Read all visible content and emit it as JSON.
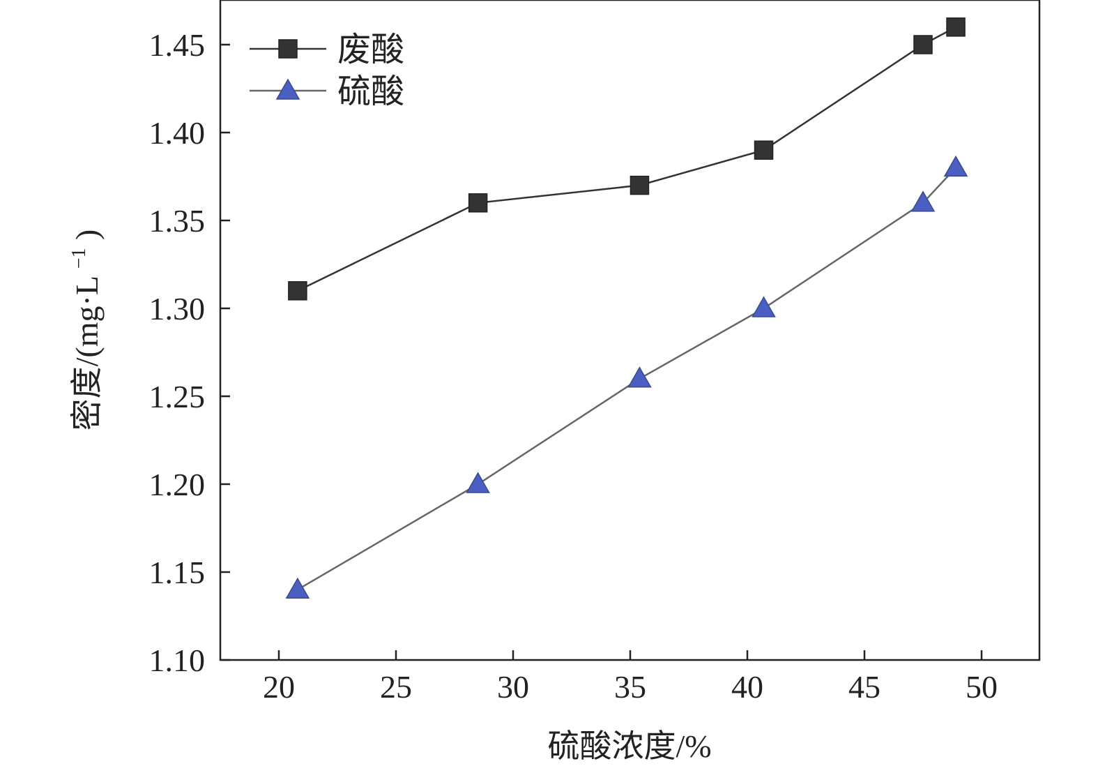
{
  "chart_data": {
    "type": "line",
    "title": "",
    "xlabel": "硫酸浓度/%",
    "ylabel": "密度/(mg·L",
    "ylabel_superscript": "−1",
    "ylabel_close": ")",
    "xlim": [
      17.5,
      52.5
    ],
    "ylim": [
      1.1,
      1.46
    ],
    "xticks": [
      20,
      25,
      30,
      35,
      40,
      45,
      50
    ],
    "xtick_labels": [
      "20",
      "25",
      "30",
      "35",
      "40",
      "45",
      "50"
    ],
    "yticks": [
      1.1,
      1.15,
      1.2,
      1.25,
      1.3,
      1.35,
      1.4,
      1.45
    ],
    "ytick_labels": [
      "1.10",
      "1.15",
      "1.20",
      "1.25",
      "1.30",
      "1.35",
      "1.40",
      "1.45"
    ],
    "grid": false,
    "legend_position": "top-left",
    "series": [
      {
        "name": "废酸",
        "marker": "square",
        "color": "#333333",
        "line_color": "#333333",
        "x": [
          20.8,
          28.5,
          35.4,
          40.7,
          47.5,
          48.9
        ],
        "y": [
          1.31,
          1.36,
          1.37,
          1.39,
          1.45,
          1.46
        ]
      },
      {
        "name": "硫酸",
        "marker": "triangle",
        "color": "#4a5fc1",
        "line_color": "#666666",
        "x": [
          20.8,
          28.5,
          35.4,
          40.7,
          47.5,
          48.9
        ],
        "y": [
          1.14,
          1.2,
          1.26,
          1.3,
          1.36,
          1.38
        ]
      }
    ]
  }
}
